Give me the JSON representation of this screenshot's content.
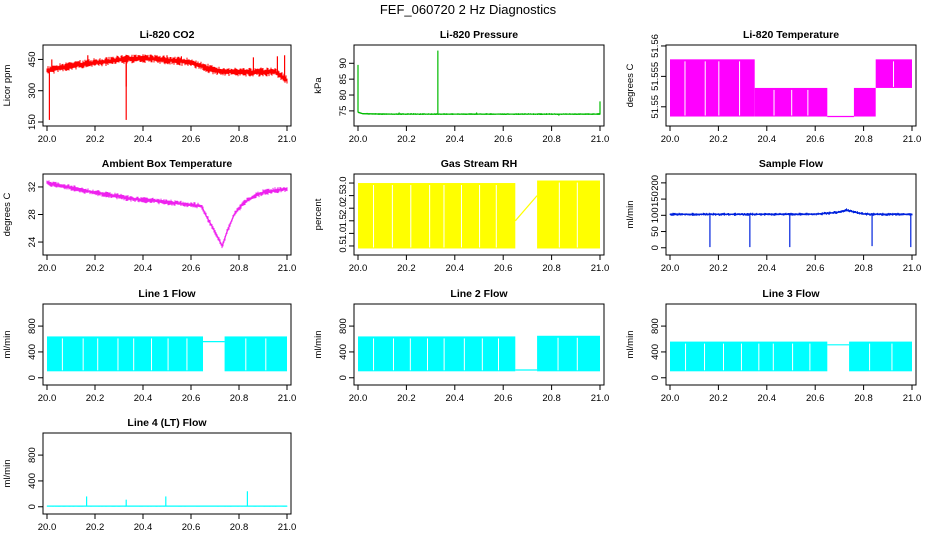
{
  "figure": {
    "title": "FEF_060720  2 Hz Diagnostics"
  },
  "chart_data": [
    {
      "id": "co2",
      "type": "line",
      "title": "Li-820 CO2",
      "ylabel": "Licor ppm",
      "xlabel": "",
      "xlim": [
        0.0,
        1.0
      ],
      "ylim": [
        150,
        500
      ],
      "xticks": [
        0.0,
        0.2,
        0.4,
        0.6,
        0.8,
        1.0
      ],
      "xtick_labels": [
        "20.0",
        "20.2",
        "20.4",
        "20.6",
        "20.8",
        "21.0"
      ],
      "yticks": [
        150,
        300,
        450
      ],
      "ytick_labels": [
        "150",
        "300",
        "450"
      ],
      "color": "#ff0000",
      "series": [
        {
          "x": [
            0.0,
            0.05,
            0.1,
            0.15,
            0.2,
            0.25,
            0.3,
            0.35,
            0.4,
            0.45,
            0.5,
            0.55,
            0.6,
            0.65,
            0.7,
            0.75,
            0.8,
            0.85,
            0.9,
            0.95,
            1.0
          ],
          "y": [
            395,
            410,
            420,
            428,
            435,
            440,
            448,
            452,
            455,
            452,
            448,
            442,
            435,
            415,
            398,
            392,
            390,
            388,
            390,
            392,
            350
          ],
          "band": 22,
          "spikes": [
            [
              0.01,
              160
            ],
            [
              0.02,
              450
            ],
            [
              0.17,
              470
            ],
            [
              0.33,
              160
            ],
            [
              0.33,
              320
            ],
            [
              0.45,
              470
            ],
            [
              0.5,
              470
            ],
            [
              0.56,
              465
            ],
            [
              0.65,
              400
            ],
            [
              0.71,
              380
            ],
            [
              0.73,
              380
            ],
            [
              0.86,
              460
            ],
            [
              0.96,
              465
            ],
            [
              0.99,
              470
            ]
          ]
        }
      ]
    },
    {
      "id": "pressure",
      "type": "line",
      "title": "Li-820 Pressure",
      "ylabel": "kPa",
      "xlabel": "",
      "xlim": [
        0.0,
        1.0
      ],
      "ylim": [
        71.5,
        94.5
      ],
      "xticks": [
        0.0,
        0.2,
        0.4,
        0.6,
        0.8,
        1.0
      ],
      "xtick_labels": [
        "20.0",
        "20.2",
        "20.4",
        "20.6",
        "20.8",
        "21.0"
      ],
      "yticks": [
        75,
        80,
        85,
        90
      ],
      "ytick_labels": [
        "75",
        "80",
        "85",
        "90"
      ],
      "color": "#00bb00",
      "series": [
        {
          "x": [
            0.0,
            0.02,
            0.1,
            0.2,
            0.3,
            0.4,
            0.5,
            0.6,
            0.7,
            0.8,
            0.9,
            1.0
          ],
          "y": [
            74.6,
            74.1,
            74.0,
            74.0,
            74.0,
            74.0,
            74.0,
            74.0,
            74.0,
            74.0,
            74.0,
            74.0
          ],
          "band": 0.3,
          "spikes": [
            [
              0.0,
              89.5
            ],
            [
              0.17,
              74.5
            ],
            [
              0.33,
              94
            ],
            [
              0.49,
              74.5
            ],
            [
              0.83,
              73.5
            ],
            [
              1.0,
              78
            ]
          ]
        }
      ]
    },
    {
      "id": "licor_temp",
      "type": "area",
      "title": "Li-820 Temperature",
      "ylabel": "degrees C",
      "xlabel": "",
      "xlim": [
        0.0,
        1.0
      ],
      "ylim": [
        51.5475,
        51.5595
      ],
      "xticks": [
        0.0,
        0.2,
        0.4,
        0.6,
        0.8,
        1.0
      ],
      "xtick_labels": [
        "20.0",
        "20.2",
        "20.4",
        "20.6",
        "20.8",
        "21.0"
      ],
      "yticks": [
        51.55,
        51.555,
        51.56
      ],
      "ytick_labels": [
        "51.55",
        "51.555",
        "51.56"
      ],
      "color": "#ff00ff",
      "levels": [
        51.5484,
        51.5531,
        51.5578
      ],
      "segments": [
        {
          "x0": 0.0,
          "x1": 0.35,
          "lo": 51.5484,
          "hi": 51.5578
        },
        {
          "x0": 0.35,
          "x1": 0.65,
          "lo": 51.5484,
          "hi": 51.5531
        },
        {
          "x0": 0.65,
          "x1": 0.76,
          "lo": 51.5484,
          "hi": 51.5484
        },
        {
          "x0": 0.76,
          "x1": 0.85,
          "lo": 51.5484,
          "hi": 51.5531
        },
        {
          "x0": 0.85,
          "x1": 1.0,
          "lo": 51.5531,
          "hi": 51.5578
        }
      ]
    },
    {
      "id": "box_temp",
      "type": "line",
      "title": "Ambient Box Temperature",
      "ylabel": "degrees C",
      "xlabel": "",
      "xlim": [
        0.0,
        1.0
      ],
      "ylim": [
        22.7,
        33.3
      ],
      "xticks": [
        0.0,
        0.2,
        0.4,
        0.6,
        0.8,
        1.0
      ],
      "xtick_labels": [
        "20.0",
        "20.2",
        "20.4",
        "20.6",
        "20.8",
        "21.0"
      ],
      "yticks": [
        24,
        28,
        32
      ],
      "ytick_labels": [
        "24",
        "28",
        "32"
      ],
      "color": "#ee22ee",
      "series": [
        {
          "x": [
            0.0,
            0.05,
            0.1,
            0.15,
            0.2,
            0.25,
            0.3,
            0.35,
            0.4,
            0.45,
            0.5,
            0.55,
            0.6,
            0.645,
            0.66,
            0.7,
            0.73,
            0.75,
            0.78,
            0.82,
            0.86,
            0.9,
            0.95,
            1.0
          ],
          "y": [
            32.6,
            32.2,
            31.9,
            31.5,
            31.2,
            30.9,
            30.6,
            30.3,
            30.1,
            30.0,
            29.8,
            29.6,
            29.4,
            29.2,
            28.0,
            25.5,
            23.4,
            25.5,
            28.0,
            29.7,
            30.6,
            31.2,
            31.5,
            31.7
          ],
          "band": 0.45
        }
      ]
    },
    {
      "id": "rh",
      "type": "area",
      "title": "Gas Stream RH",
      "ylabel": "percent",
      "xlabel": "",
      "xlim": [
        0.0,
        1.0
      ],
      "ylim": [
        0.3,
        3.2
      ],
      "xticks": [
        0.0,
        0.2,
        0.4,
        0.6,
        0.8,
        1.0
      ],
      "xtick_labels": [
        "20.0",
        "20.2",
        "20.4",
        "20.6",
        "20.8",
        "21.0"
      ],
      "yticks": [
        0.5,
        1.0,
        1.5,
        2.0,
        2.5,
        3.0
      ],
      "ytick_labels": [
        "0.5",
        "1.0",
        "1.5",
        "2.0",
        "2.5",
        "3.0"
      ],
      "color": "#ffff00",
      "segments": [
        {
          "x0": 0.0,
          "x1": 0.65,
          "lo": 0.4,
          "hi": 3.0
        },
        {
          "x0": 0.74,
          "x1": 1.0,
          "lo": 0.4,
          "hi": 3.1
        }
      ],
      "gap_line": [
        [
          0.65,
          1.5
        ],
        [
          0.74,
          2.5
        ]
      ]
    },
    {
      "id": "sample_flow",
      "type": "line",
      "title": "Sample Flow",
      "ylabel": "ml/min",
      "xlabel": "",
      "xlim": [
        0.0,
        1.0
      ],
      "ylim": [
        -10,
        215
      ],
      "xticks": [
        0.0,
        0.2,
        0.4,
        0.6,
        0.8,
        1.0
      ],
      "xtick_labels": [
        "20.0",
        "20.2",
        "20.4",
        "20.6",
        "20.8",
        "21.0"
      ],
      "yticks": [
        0,
        50,
        100,
        150,
        200
      ],
      "ytick_labels": [
        "0",
        "50",
        "100",
        "150",
        "200"
      ],
      "color": "#0022dd",
      "series": [
        {
          "x": [
            0.0,
            0.1,
            0.2,
            0.3,
            0.4,
            0.5,
            0.6,
            0.65,
            0.7,
            0.73,
            0.76,
            0.8,
            0.9,
            1.0
          ],
          "y": [
            103,
            103,
            103,
            103,
            103,
            103,
            104,
            106,
            110,
            117,
            110,
            104,
            103,
            103
          ],
          "band": 5,
          "spikes": [
            [
              0.165,
              2
            ],
            [
              0.33,
              2
            ],
            [
              0.495,
              2
            ],
            [
              0.835,
              5
            ],
            [
              0.995,
              2
            ]
          ]
        }
      ]
    },
    {
      "id": "line1",
      "type": "area",
      "title": "Line 1 Flow",
      "ylabel": "ml/min",
      "xlabel": "",
      "xlim": [
        0.0,
        1.0
      ],
      "ylim": [
        -50,
        1080
      ],
      "xticks": [
        0.0,
        0.2,
        0.4,
        0.6,
        0.8,
        1.0
      ],
      "xtick_labels": [
        "20.0",
        "20.2",
        "20.4",
        "20.6",
        "20.8",
        "21.0"
      ],
      "yticks": [
        0,
        400,
        800
      ],
      "ytick_labels": [
        "0",
        "400",
        "800"
      ],
      "color": "#00ffff",
      "segments": [
        {
          "x0": 0.0,
          "x1": 0.65,
          "lo": 100,
          "hi": 640
        },
        {
          "x0": 0.74,
          "x1": 1.0,
          "lo": 100,
          "hi": 640
        }
      ],
      "gap_line": [
        [
          0.65,
          560
        ],
        [
          0.74,
          560
        ]
      ]
    },
    {
      "id": "line2",
      "type": "area",
      "title": "Line 2 Flow",
      "ylabel": "ml/min",
      "xlabel": "",
      "xlim": [
        0.0,
        1.0
      ],
      "ylim": [
        -50,
        1080
      ],
      "xticks": [
        0.0,
        0.2,
        0.4,
        0.6,
        0.8,
        1.0
      ],
      "xtick_labels": [
        "20.0",
        "20.2",
        "20.4",
        "20.6",
        "20.8",
        "21.0"
      ],
      "yticks": [
        0,
        400,
        800
      ],
      "ytick_labels": [
        "0",
        "400",
        "800"
      ],
      "color": "#00ffff",
      "segments": [
        {
          "x0": 0.0,
          "x1": 0.65,
          "lo": 100,
          "hi": 640
        },
        {
          "x0": 0.74,
          "x1": 1.0,
          "lo": 100,
          "hi": 650
        }
      ],
      "gap_line": [
        [
          0.65,
          120
        ],
        [
          0.74,
          120
        ]
      ]
    },
    {
      "id": "line3",
      "type": "area",
      "title": "Line 3 Flow",
      "ylabel": "ml/min",
      "xlabel": "",
      "xlim": [
        0.0,
        1.0
      ],
      "ylim": [
        -50,
        1080
      ],
      "xticks": [
        0.0,
        0.2,
        0.4,
        0.6,
        0.8,
        1.0
      ],
      "xtick_labels": [
        "20.0",
        "20.2",
        "20.4",
        "20.6",
        "20.8",
        "21.0"
      ],
      "yticks": [
        0,
        400,
        800
      ],
      "ytick_labels": [
        "0",
        "400",
        "800"
      ],
      "color": "#00ffff",
      "segments": [
        {
          "x0": 0.0,
          "x1": 0.65,
          "lo": 100,
          "hi": 560
        },
        {
          "x0": 0.74,
          "x1": 1.0,
          "lo": 100,
          "hi": 560
        }
      ],
      "gap_line": [
        [
          0.65,
          510
        ],
        [
          0.74,
          510
        ]
      ]
    },
    {
      "id": "line4",
      "type": "line",
      "title": "Line 4 (LT) Flow",
      "ylabel": "ml/min",
      "xlabel": "",
      "xlim": [
        0.0,
        1.0
      ],
      "ylim": [
        -50,
        1080
      ],
      "xticks": [
        0.0,
        0.2,
        0.4,
        0.6,
        0.8,
        1.0
      ],
      "xtick_labels": [
        "20.0",
        "20.2",
        "20.4",
        "20.6",
        "20.8",
        "21.0"
      ],
      "yticks": [
        0,
        400,
        800
      ],
      "ytick_labels": [
        "0",
        "400",
        "800"
      ],
      "color": "#00ffff",
      "series": [
        {
          "x": [
            0.0,
            1.0
          ],
          "y": [
            10,
            10
          ],
          "band": 8,
          "spikes": [
            [
              0.165,
              160
            ],
            [
              0.33,
              110
            ],
            [
              0.495,
              160
            ],
            [
              0.835,
              240
            ]
          ]
        }
      ]
    }
  ]
}
